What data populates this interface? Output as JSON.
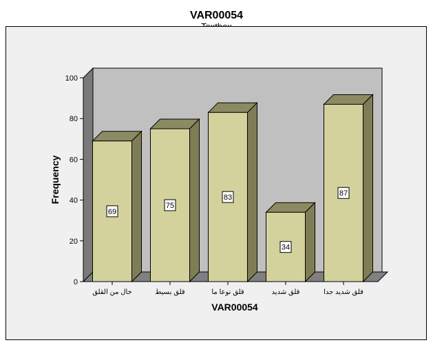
{
  "chart_data": {
    "type": "bar",
    "title": "VAR00054",
    "subtitle": "Textbox",
    "xlabel": "VAR00054",
    "ylabel": "Frequency",
    "categories": [
      "خال من القلق",
      "قلق بسيط",
      "قلق نوعا ما",
      "قلق شديد",
      "قلق شديد جدا"
    ],
    "values": [
      69,
      75,
      83,
      34,
      87
    ],
    "ylim": [
      0,
      100
    ],
    "yticks": [
      0,
      20,
      40,
      60,
      80,
      100
    ],
    "grid": false,
    "legend": "none",
    "style": "3d",
    "colors": {
      "bar_front": "#d4d29c",
      "bar_side": "#7f7d56",
      "bar_top": "#8c8a62",
      "back_wall": "#c0c0c0",
      "side_wall": "#7a7a7a",
      "floor": "#808080",
      "frame_bg": "#f0f0f0"
    }
  }
}
